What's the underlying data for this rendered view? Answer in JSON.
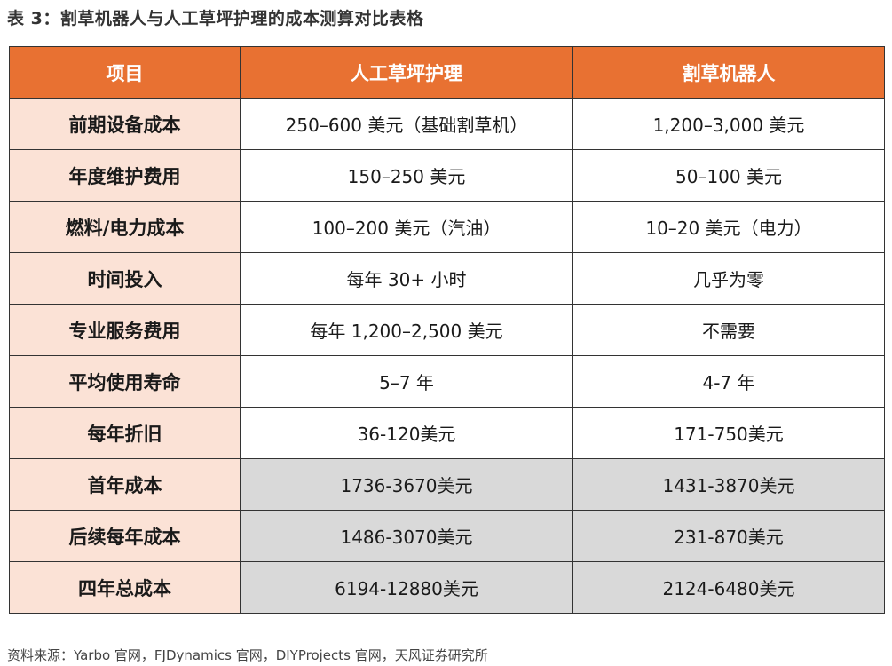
{
  "title": "表 3：割草机器人与人工草坪护理的成本测算对比表格",
  "headers": [
    "项目",
    "人工草坪护理",
    "割草机器人"
  ],
  "rows": [
    {
      "label": "前期设备成本",
      "manual": "250–600 美元（基础割草机）",
      "robot": "1,200–3,000 美元"
    },
    {
      "label": "年度维护费用",
      "manual": "150–250 美元",
      "robot": "50–100 美元"
    },
    {
      "label": "燃料/电力成本",
      "manual": "100–200 美元（汽油）",
      "robot": "10–20 美元（电力）"
    },
    {
      "label": "时间投入",
      "manual": "每年 30+ 小时",
      "robot": "几乎为零"
    },
    {
      "label": "专业服务费用",
      "manual": "每年 1,200–2,500 美元",
      "robot": "不需要"
    },
    {
      "label": "平均使用寿命",
      "manual": "5–7 年",
      "robot": "4-7 年"
    },
    {
      "label": "每年折旧",
      "manual": "36-120美元",
      "robot": "171-750美元"
    },
    {
      "label": "首年成本",
      "manual": "1736-3670美元",
      "robot": "1431-3870美元"
    },
    {
      "label": "后续每年成本",
      "manual": "1486-3070美元",
      "robot": "231-870美元"
    },
    {
      "label": "四年总成本",
      "manual": "6194-12880美元",
      "robot": "2124-6480美元"
    }
  ],
  "source": "资料来源：Yarbo 官网，FJDynamics 官网，DIYProjects 官网，天风证券研究所"
}
